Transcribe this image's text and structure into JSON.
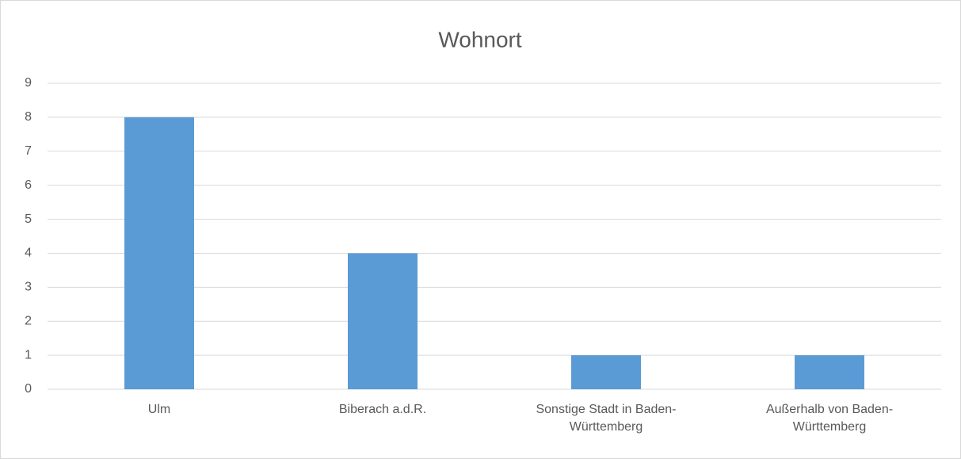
{
  "chart_data": {
    "type": "bar",
    "title": "Wohnort",
    "categories": [
      "Ulm",
      "Biberach a.d.R.",
      "Sonstige Stadt in Baden-Württemberg",
      "Außerhalb von Baden-Württemberg"
    ],
    "values": [
      8,
      4,
      1,
      1
    ],
    "color": "#5b9bd5",
    "ylim": [
      0,
      9
    ],
    "yticks": [
      0,
      1,
      2,
      3,
      4,
      5,
      6,
      7,
      8,
      9
    ],
    "grid": true
  }
}
